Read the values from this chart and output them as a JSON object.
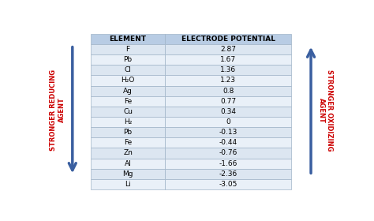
{
  "elements": [
    "F",
    "Pb",
    "Cl",
    "H₂O",
    "Ag",
    "Fe",
    "Cu",
    "H₂",
    "Pb",
    "Fe",
    "Zn",
    "Al",
    "Mg",
    "Li"
  ],
  "potentials": [
    "2.87",
    "1.67",
    "1.36",
    "1.23",
    "0.8",
    "0.77",
    "0.34",
    "0",
    "-0.13",
    "-0.44",
    "-0.76",
    "-1.66",
    "-2.36",
    "-3.05"
  ],
  "col1_header": "ELEMENT",
  "col2_header": "ELECTRODE POTENTIAL",
  "left_label_line1": "STRONGER REDUCING",
  "left_label_line2": "AGENT",
  "right_label_line1": "STRONGER OXIDIZING",
  "right_label_line2": "AGENT",
  "header_bg": "#b8cce4",
  "row_bg_even": "#dce6f1",
  "row_bg_odd": "#e9f0f8",
  "table_border": "#a0b4c8",
  "arrow_color": "#3a5fa0",
  "text_color": "#000000",
  "label_color": "#cc0000",
  "header_fontsize": 6.5,
  "cell_fontsize": 6.5,
  "label_fontsize": 6.0
}
